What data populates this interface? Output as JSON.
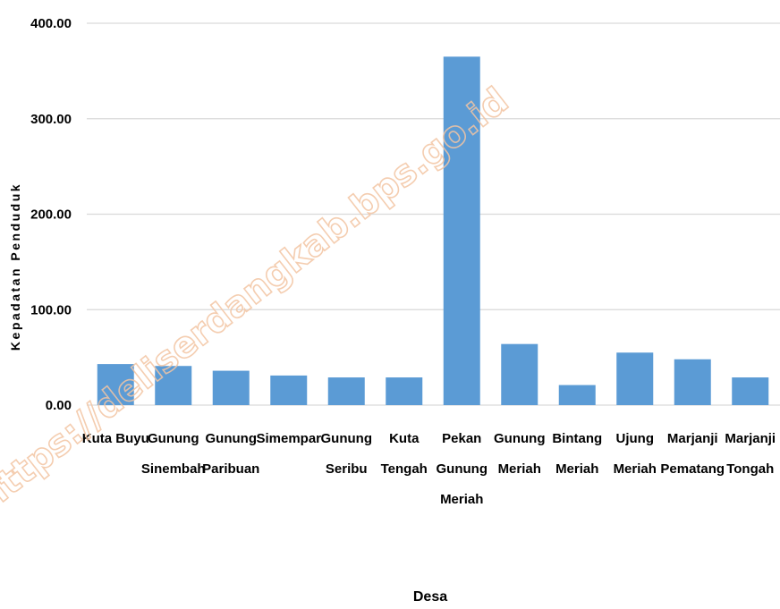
{
  "chart_data": {
    "type": "bar",
    "title": "",
    "xlabel": "Desa",
    "ylabel": "Kepadatan Penduduk",
    "ylim": [
      0,
      400
    ],
    "yticks": [
      "0.00",
      "100.00",
      "200.00",
      "300.00",
      "400.00"
    ],
    "grid": true,
    "legend": "none",
    "bar_color": "#5b9bd5",
    "categories": [
      [
        "Kuta Buyu"
      ],
      [
        "Gunung",
        "Sinembah"
      ],
      [
        "Gunung",
        "Paribuan"
      ],
      [
        "Simempar"
      ],
      [
        "Gunung",
        "Seribu"
      ],
      [
        "Kuta",
        "Tengah"
      ],
      [
        "Pekan",
        "Gunung",
        "Meriah"
      ],
      [
        "Gunung",
        "Meriah"
      ],
      [
        "Bintang",
        "Meriah"
      ],
      [
        "Ujung",
        "Meriah"
      ],
      [
        "Marjanji",
        "Pematang"
      ],
      [
        "Marjanji",
        "Tongah"
      ]
    ],
    "values": [
      43,
      41,
      36,
      31,
      29,
      29,
      365,
      64,
      21,
      55,
      48,
      29
    ]
  },
  "watermark": "https://deliserdangkab.bps.go.id"
}
